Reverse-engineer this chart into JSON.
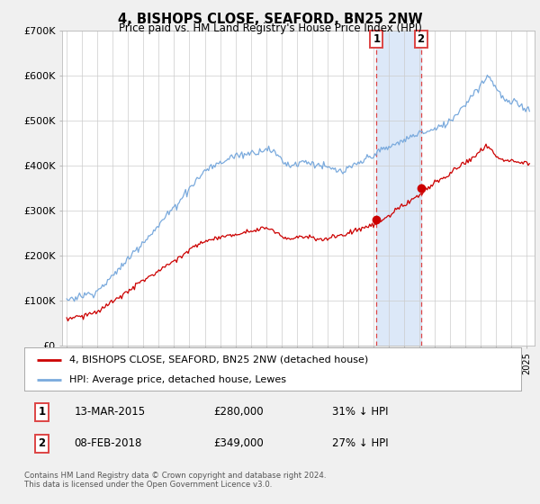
{
  "title": "4, BISHOPS CLOSE, SEAFORD, BN25 2NW",
  "subtitle": "Price paid vs. HM Land Registry's House Price Index (HPI)",
  "ylim": [
    0,
    700000
  ],
  "yticks": [
    0,
    100000,
    200000,
    300000,
    400000,
    500000,
    600000,
    700000
  ],
  "ytick_labels": [
    "£0",
    "£100K",
    "£200K",
    "£300K",
    "£400K",
    "£500K",
    "£600K",
    "£700K"
  ],
  "legend_line1": "4, BISHOPS CLOSE, SEAFORD, BN25 2NW (detached house)",
  "legend_line2": "HPI: Average price, detached house, Lewes",
  "line1_color": "#cc0000",
  "line2_color": "#7aaadd",
  "marker1_date": 2015.19,
  "marker1_value": 280000,
  "marker2_date": 2018.08,
  "marker2_value": 349000,
  "annotation1_date": "13-MAR-2015",
  "annotation1_price": "£280,000",
  "annotation1_hpi": "31% ↓ HPI",
  "annotation2_date": "08-FEB-2018",
  "annotation2_price": "£349,000",
  "annotation2_hpi": "27% ↓ HPI",
  "footer": "Contains HM Land Registry data © Crown copyright and database right 2024.\nThis data is licensed under the Open Government Licence v3.0.",
  "background_color": "#f0f0f0",
  "plot_bg_color": "#ffffff",
  "grid_color": "#cccccc",
  "span_color": "#dce8f8",
  "vline_color": "#dd4444"
}
